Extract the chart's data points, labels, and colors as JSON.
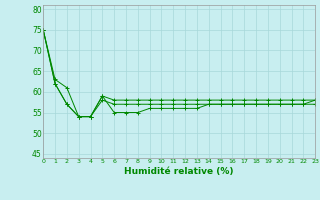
{
  "title": "",
  "xlabel": "Humidité relative (%)",
  "ylabel": "",
  "background_color": "#c8eef0",
  "grid_color": "#a8d8da",
  "line_color": "#008800",
  "marker_color": "#008800",
  "xlim": [
    0,
    23
  ],
  "ylim": [
    44,
    81
  ],
  "yticks": [
    45,
    50,
    55,
    60,
    65,
    70,
    75,
    80
  ],
  "xtick_labels": [
    "0",
    "1",
    "2",
    "3",
    "4",
    "5",
    "6",
    "7",
    "8",
    "9",
    "10",
    "11",
    "12",
    "13",
    "14",
    "15",
    "16",
    "17",
    "18",
    "19",
    "20",
    "21",
    "22",
    "23"
  ],
  "series1": [
    75,
    63,
    61,
    54,
    54,
    59,
    58,
    58,
    58,
    58,
    58,
    58,
    58,
    58,
    58,
    58,
    58,
    58,
    58,
    58,
    58,
    58,
    58,
    58
  ],
  "series2": [
    75,
    62,
    57,
    54,
    54,
    58,
    57,
    57,
    57,
    57,
    57,
    57,
    57,
    57,
    57,
    57,
    57,
    57,
    57,
    57,
    57,
    57,
    57,
    57
  ],
  "series3": [
    75,
    62,
    57,
    54,
    54,
    59,
    55,
    55,
    55,
    56,
    56,
    56,
    56,
    56,
    57,
    57,
    57,
    57,
    57,
    57,
    57,
    57,
    57,
    58
  ]
}
